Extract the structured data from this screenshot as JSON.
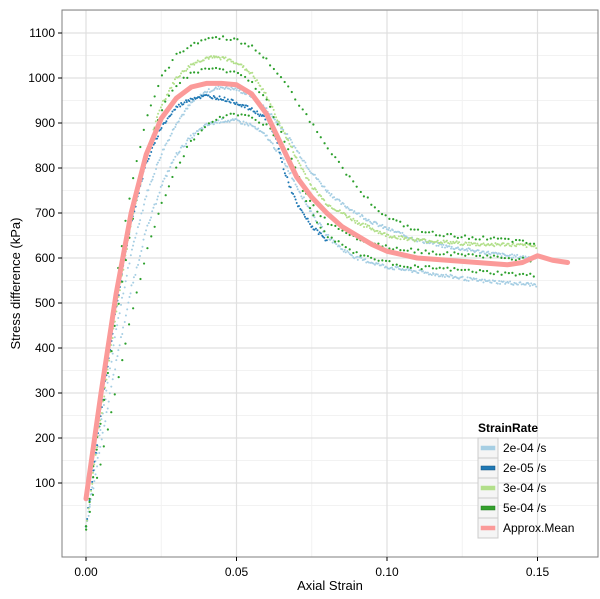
{
  "chart_data": {
    "type": "scatter",
    "title": "",
    "xlabel": "Axial Strain",
    "ylabel": "Stress difference (kPa)",
    "xlim": [
      -0.008,
      0.17
    ],
    "ylim": [
      -10,
      1150
    ],
    "x_ticks": [
      0.0,
      0.05,
      0.1,
      0.15
    ],
    "x_tick_labels": [
      "0.00",
      "0.05",
      "0.10",
      "0.15"
    ],
    "y_ticks": [
      100,
      200,
      300,
      400,
      500,
      600,
      700,
      800,
      900,
      1000,
      1100
    ],
    "y_tick_labels": [
      "100",
      "200",
      "300",
      "400",
      "500",
      "600",
      "700",
      "800",
      "900",
      "1000",
      "1100"
    ],
    "grid": true,
    "legend": {
      "title": "StrainRate",
      "placement": "bottom-right",
      "entries": [
        {
          "label": "2e-04 /s",
          "color": "#a6cee3"
        },
        {
          "label": "2e-05 /s",
          "color": "#1f78b4"
        },
        {
          "label": "3e-04 /s",
          "color": "#b2df8a"
        },
        {
          "label": "5e-04 /s",
          "color": "#33a02c"
        },
        {
          "label": "Approx.Mean",
          "color": "#fb9a99"
        }
      ]
    },
    "series": [
      {
        "name": "2e-04 /s (a)",
        "color": "#a6cee3",
        "kind": "points",
        "x": [
          0.0,
          0.005,
          0.01,
          0.015,
          0.02,
          0.025,
          0.03,
          0.035,
          0.04,
          0.045,
          0.05,
          0.055,
          0.06,
          0.065,
          0.07,
          0.075,
          0.08,
          0.085,
          0.09,
          0.095,
          0.1,
          0.11,
          0.12,
          0.13,
          0.14,
          0.15
        ],
        "y": [
          0,
          230,
          440,
          610,
          740,
          830,
          900,
          945,
          970,
          980,
          975,
          960,
          930,
          890,
          840,
          790,
          750,
          720,
          700,
          680,
          665,
          640,
          625,
          615,
          605,
          600
        ]
      },
      {
        "name": "2e-04 /s (b)",
        "color": "#a6cee3",
        "kind": "points",
        "x": [
          0.0,
          0.005,
          0.01,
          0.015,
          0.02,
          0.025,
          0.03,
          0.035,
          0.04,
          0.045,
          0.05,
          0.055,
          0.06,
          0.065,
          0.07,
          0.075,
          0.08,
          0.085,
          0.09,
          0.095,
          0.1,
          0.11,
          0.12,
          0.13,
          0.14,
          0.15
        ],
        "y": [
          0,
          190,
          370,
          530,
          660,
          760,
          830,
          870,
          895,
          905,
          905,
          895,
          870,
          825,
          760,
          700,
          650,
          620,
          600,
          590,
          580,
          570,
          560,
          550,
          545,
          540
        ]
      },
      {
        "name": "2e-05 /s",
        "color": "#1f78b4",
        "kind": "points",
        "x": [
          0.0,
          0.005,
          0.01,
          0.015,
          0.02,
          0.025,
          0.03,
          0.035,
          0.04,
          0.045,
          0.05,
          0.055,
          0.06,
          0.063,
          0.066,
          0.07,
          0.075,
          0.08
        ],
        "y": [
          0,
          260,
          490,
          680,
          810,
          890,
          935,
          955,
          960,
          955,
          945,
          930,
          910,
          870,
          790,
          720,
          670,
          640
        ]
      },
      {
        "name": "3e-04 /s",
        "color": "#b2df8a",
        "kind": "points",
        "x": [
          0.0,
          0.005,
          0.01,
          0.015,
          0.02,
          0.025,
          0.03,
          0.035,
          0.04,
          0.045,
          0.05,
          0.055,
          0.06,
          0.065,
          0.07,
          0.075,
          0.08,
          0.09,
          0.1,
          0.11,
          0.12,
          0.13,
          0.14,
          0.15
        ],
        "y": [
          0,
          250,
          480,
          680,
          830,
          940,
          1000,
          1030,
          1045,
          1045,
          1035,
          1010,
          960,
          890,
          820,
          760,
          720,
          680,
          650,
          640,
          635,
          630,
          630,
          625
        ]
      },
      {
        "name": "5e-04 /s (a)",
        "color": "#2ca02c",
        "kind": "points",
        "x": [
          0.0,
          0.005,
          0.01,
          0.015,
          0.02,
          0.025,
          0.03,
          0.035,
          0.04,
          0.045,
          0.05,
          0.055,
          0.06,
          0.065,
          0.07,
          0.075,
          0.08,
          0.085,
          0.09,
          0.095,
          0.1,
          0.11,
          0.12,
          0.13,
          0.14,
          0.15
        ],
        "y": [
          0,
          280,
          540,
          760,
          910,
          1000,
          1050,
          1075,
          1088,
          1090,
          1085,
          1070,
          1040,
          1000,
          950,
          900,
          850,
          800,
          760,
          720,
          690,
          660,
          650,
          645,
          640,
          630
        ]
      },
      {
        "name": "5e-04 /s (b)",
        "color": "#2ca02c",
        "kind": "points",
        "x": [
          0.0,
          0.005,
          0.01,
          0.015,
          0.02,
          0.025,
          0.03,
          0.035,
          0.04,
          0.045,
          0.05,
          0.055,
          0.06,
          0.065,
          0.07,
          0.075,
          0.08,
          0.09,
          0.1,
          0.11,
          0.12,
          0.13,
          0.14,
          0.15
        ],
        "y": [
          0,
          240,
          470,
          670,
          830,
          930,
          985,
          1010,
          1020,
          1020,
          1010,
          990,
          950,
          880,
          790,
          720,
          680,
          645,
          625,
          615,
          610,
          605,
          600,
          595
        ]
      },
      {
        "name": "5e-04 /s (c)",
        "color": "#2ca02c",
        "kind": "points",
        "x": [
          0.0,
          0.005,
          0.01,
          0.015,
          0.02,
          0.025,
          0.03,
          0.035,
          0.04,
          0.045,
          0.05,
          0.055,
          0.06,
          0.065,
          0.07,
          0.075,
          0.08,
          0.09,
          0.1,
          0.11,
          0.12,
          0.13,
          0.14,
          0.15
        ],
        "y": [
          0,
          150,
          310,
          470,
          610,
          720,
          800,
          860,
          895,
          915,
          920,
          915,
          895,
          850,
          780,
          700,
          650,
          610,
          590,
          580,
          575,
          570,
          565,
          560
        ]
      },
      {
        "name": "Approx.Mean",
        "color": "#fb9a99",
        "kind": "line",
        "x": [
          0.0,
          0.005,
          0.01,
          0.015,
          0.02,
          0.025,
          0.03,
          0.035,
          0.04,
          0.045,
          0.05,
          0.055,
          0.06,
          0.065,
          0.07,
          0.075,
          0.08,
          0.085,
          0.09,
          0.095,
          0.1,
          0.11,
          0.12,
          0.13,
          0.14,
          0.145,
          0.15,
          0.155,
          0.16
        ],
        "y": [
          65,
          300,
          520,
          700,
          830,
          910,
          955,
          980,
          988,
          988,
          985,
          965,
          920,
          850,
          780,
          735,
          700,
          670,
          650,
          630,
          615,
          600,
          595,
          590,
          585,
          590,
          605,
          595,
          590
        ]
      }
    ]
  }
}
